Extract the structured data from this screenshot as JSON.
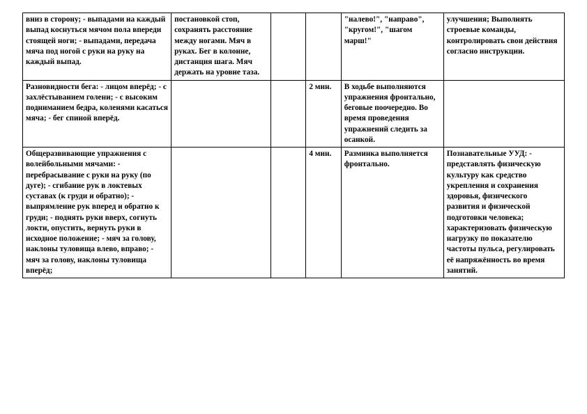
{
  "rows": [
    {
      "c1": "вниз в сторону;\n- выпадами на каждый выпад коснуться мячом пола впереди стоящей ноги;\n- выпадами, передача мяча под ногой с руки на руку на каждый выпад.",
      "c2": "постановкой стоп, сохранять расстояние между ногами. Мяч в руках. Бег в колонне, дистанция шага. Мяч держать на уровне таза.",
      "c3": "",
      "c4": "",
      "c5": "\"налево!\", \"направо\", \"кругом!\", \"шагом марш!\"",
      "c6": "улучшения;\nВыполнять строевые команды, контролировать свои действия согласно инструкции."
    },
    {
      "c1": "Разновидности бега:\n- лицом вперёд;\n- с захлёстыванием голени;\n- с высоким подниманием бедра, коленями касаться мяча;\n- бег спиной вперёд.",
      "c2": "",
      "c3": "",
      "c4": "2 мин.",
      "c5": "В ходьбе выполняются упражнения фронтально, беговые поочередно. Во время проведения упражнений следить за осанкой.",
      "c6": ""
    },
    {
      "c1": "Общеразвивающие упражнения с волейбольными мячами:\n- перебрасывание с руки на руку (по дуге);\n- сгибание рук в локтевых суставах (к груди и обратно);\n- выпрямление рук вперед и обратно к груди;\n- поднять руки вверх, согнуть локти, опустить, вернуть руки в исходное положение;\n- мяч за голову, наклоны туловища влево, вправо;\n- мяч за голову, наклоны туловища вперёд;",
      "c2": "",
      "c3": "",
      "c4": "4 мин.",
      "c5": "Разминка выполняется фронтально.",
      "c6": "Познавательные УУД:\n- представлять физическую культуру как средство укрепления и сохранения здоровья, физического развития и физической подготовки человека; характеризовать физическую нагрузку по показателю частоты пульса, регулировать её напряжённость во время занятий."
    }
  ]
}
